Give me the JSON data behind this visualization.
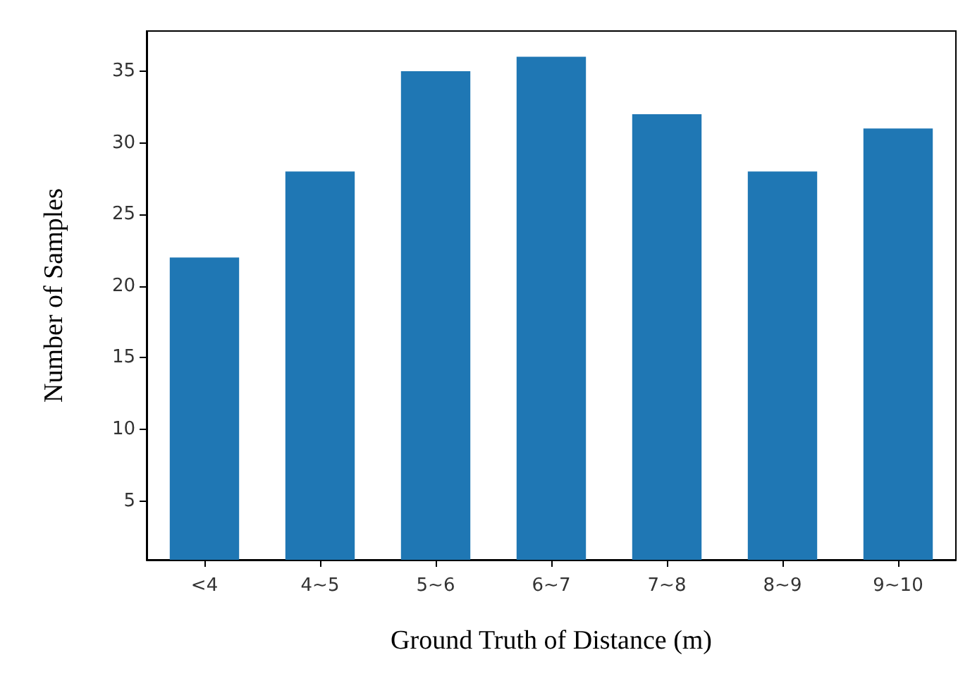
{
  "chart_data": {
    "type": "bar",
    "xlabel": "Ground Truth of Distance (m)",
    "ylabel": "Number of Samples",
    "categories": [
      "<4",
      "4~5",
      "5~6",
      "6~7",
      "7~8",
      "8~9",
      "9~10"
    ],
    "values": [
      22,
      28,
      35,
      36,
      32,
      28,
      31
    ],
    "color": "#1f77b4",
    "ylim": [
      0.9,
      37.8
    ],
    "yticks": [
      5,
      10,
      15,
      20,
      25,
      30,
      35
    ],
    "grid": false
  }
}
